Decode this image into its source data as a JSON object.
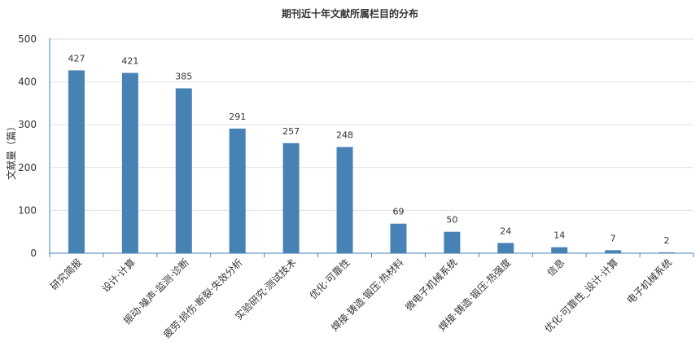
{
  "chart_data": {
    "type": "bar",
    "title": "期刊近十年文献所属栏目的分布",
    "ylabel": "文献量（篇）",
    "xlabel": "",
    "ylim": [
      0,
      500
    ],
    "yticks": [
      0,
      100,
      200,
      300,
      400,
      500
    ],
    "grid": true,
    "bar_color": "#4682b4",
    "categories": [
      "研究简报",
      "设计·计算",
      "振动·噪声·监测·诊断",
      "疲劳·损伤·断裂·失效分析",
      "实验研究·测试技术",
      "优化·可靠性",
      "焊接·铸造·锻压·热材料",
      "微电子机械系统",
      "焊接·铸造·锻压·热强度",
      "信息",
      "优化·可靠性_设计·计算",
      "电子机械系统"
    ],
    "values": [
      427,
      421,
      385,
      291,
      257,
      248,
      69,
      50,
      24,
      14,
      7,
      2
    ]
  }
}
